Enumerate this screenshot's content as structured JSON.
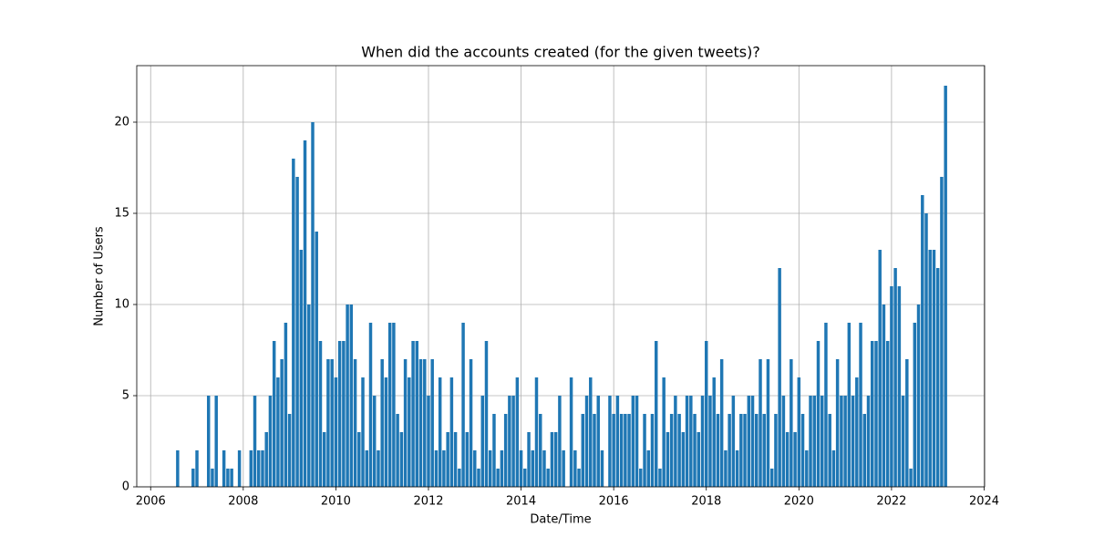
{
  "chart_data": {
    "type": "bar",
    "title": "When did the accounts created (for the given tweets)?",
    "x_label": "Date/Time",
    "y_label": "Number of Users",
    "color": "#1f77b4",
    "grid": true,
    "xlim": [
      2005.7,
      2024.01
    ],
    "ylim": [
      0,
      23.1
    ],
    "xticks": [
      2006,
      2008,
      2010,
      2012,
      2014,
      2016,
      2018,
      2020,
      2022,
      2024
    ],
    "yticks": [
      0,
      5,
      10,
      15,
      20
    ],
    "x": [
      2006.583,
      2006.917,
      2007,
      2007.25,
      2007.333,
      2007.417,
      2007.583,
      2007.667,
      2007.75,
      2007.917,
      2008.167,
      2008.25,
      2008.333,
      2008.417,
      2008.5,
      2008.583,
      2008.667,
      2008.75,
      2008.833,
      2008.917,
      2009,
      2009.083,
      2009.167,
      2009.25,
      2009.333,
      2009.417,
      2009.5,
      2009.583,
      2009.667,
      2009.75,
      2009.833,
      2009.917,
      2010,
      2010.083,
      2010.167,
      2010.25,
      2010.333,
      2010.417,
      2010.5,
      2010.583,
      2010.667,
      2010.75,
      2010.833,
      2010.917,
      2011,
      2011.083,
      2011.167,
      2011.25,
      2011.333,
      2011.417,
      2011.5,
      2011.583,
      2011.667,
      2011.75,
      2011.833,
      2011.917,
      2012,
      2012.083,
      2012.167,
      2012.25,
      2012.333,
      2012.417,
      2012.5,
      2012.583,
      2012.667,
      2012.75,
      2012.833,
      2012.917,
      2013,
      2013.083,
      2013.167,
      2013.25,
      2013.333,
      2013.417,
      2013.5,
      2013.583,
      2013.667,
      2013.75,
      2013.833,
      2013.917,
      2014,
      2014.083,
      2014.167,
      2014.25,
      2014.333,
      2014.417,
      2014.5,
      2014.583,
      2014.667,
      2014.75,
      2014.833,
      2014.917,
      2015,
      2015.083,
      2015.167,
      2015.25,
      2015.333,
      2015.417,
      2015.5,
      2015.583,
      2015.667,
      2015.75,
      2015.833,
      2015.917,
      2016,
      2016.083,
      2016.167,
      2016.25,
      2016.333,
      2016.417,
      2016.5,
      2016.583,
      2016.667,
      2016.75,
      2016.833,
      2016.917,
      2017,
      2017.083,
      2017.167,
      2017.25,
      2017.333,
      2017.417,
      2017.5,
      2017.583,
      2017.667,
      2017.75,
      2017.833,
      2017.917,
      2018,
      2018.083,
      2018.167,
      2018.25,
      2018.333,
      2018.417,
      2018.5,
      2018.583,
      2018.667,
      2018.75,
      2018.833,
      2018.917,
      2019,
      2019.083,
      2019.167,
      2019.25,
      2019.333,
      2019.417,
      2019.5,
      2019.583,
      2019.667,
      2019.75,
      2019.833,
      2019.917,
      2020,
      2020.083,
      2020.167,
      2020.25,
      2020.333,
      2020.417,
      2020.5,
      2020.583,
      2020.667,
      2020.75,
      2020.833,
      2020.917,
      2021,
      2021.083,
      2021.167,
      2021.25,
      2021.333,
      2021.417,
      2021.5,
      2021.583,
      2021.667,
      2021.75,
      2021.833,
      2021.917,
      2022,
      2022.083,
      2022.167,
      2022.25,
      2022.333,
      2022.417,
      2022.5,
      2022.583,
      2022.667,
      2022.75,
      2022.833,
      2022.917,
      2023,
      2023.083,
      2023.167
    ],
    "values": [
      2,
      1,
      2,
      5,
      1,
      5,
      2,
      1,
      1,
      2,
      2,
      5,
      2,
      2,
      3,
      5,
      8,
      6,
      7,
      9,
      4,
      18,
      17,
      13,
      19,
      10,
      20,
      14,
      8,
      3,
      7,
      7,
      6,
      8,
      8,
      10,
      10,
      7,
      3,
      6,
      2,
      9,
      5,
      2,
      7,
      6,
      9,
      9,
      4,
      3,
      7,
      6,
      8,
      8,
      7,
      7,
      5,
      7,
      2,
      6,
      2,
      3,
      6,
      3,
      1,
      9,
      3,
      7,
      2,
      1,
      5,
      8,
      2,
      4,
      1,
      2,
      4,
      5,
      5,
      6,
      2,
      1,
      3,
      2,
      6,
      4,
      2,
      1,
      3,
      3,
      5,
      2,
      0,
      6,
      2,
      1,
      4,
      5,
      6,
      4,
      5,
      2,
      0,
      5,
      4,
      5,
      4,
      4,
      4,
      5,
      5,
      1,
      4,
      2,
      4,
      8,
      1,
      6,
      3,
      4,
      5,
      4,
      3,
      5,
      5,
      4,
      3,
      5,
      8,
      5,
      6,
      4,
      7,
      2,
      4,
      5,
      2,
      4,
      4,
      5,
      5,
      4,
      7,
      4,
      7,
      1,
      4,
      12,
      5,
      3,
      7,
      3,
      6,
      4,
      2,
      5,
      5,
      8,
      5,
      9,
      4,
      2,
      7,
      5,
      5,
      9,
      5,
      6,
      9,
      4,
      5,
      8,
      8,
      13,
      10,
      8,
      11,
      12,
      11,
      5,
      7,
      1,
      9,
      10,
      16,
      15,
      13,
      13,
      12,
      17,
      22
    ]
  }
}
